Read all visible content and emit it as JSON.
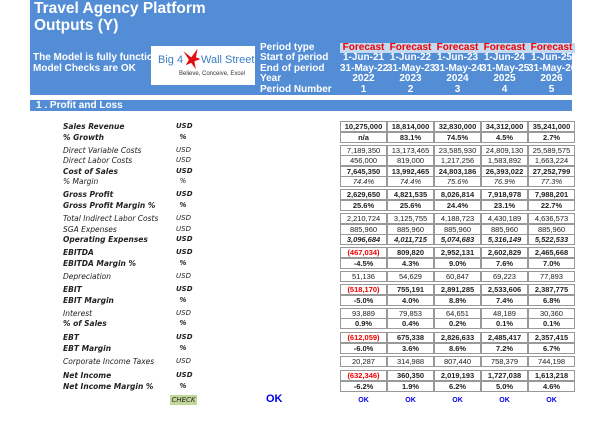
{
  "title_line1": "Travel Agency Platform",
  "title_line2": "Outputs (Y)",
  "status1": "The Model is fully functional",
  "status2": "Model Checks are OK",
  "logo": {
    "left": "Big 4",
    "right": "Wall Street",
    "tagline": "Believe, Conceive, Excel"
  },
  "period_labels": [
    "Period type",
    "Start of period",
    "End of period",
    "Year",
    "Period Number"
  ],
  "periods": [
    {
      "type": "Forecast",
      "start": "1-Jun-21",
      "end": "31-May-22",
      "year": "2022",
      "num": "1"
    },
    {
      "type": "Forecast",
      "start": "1-Jun-22",
      "end": "31-May-23",
      "year": "2023",
      "num": "2"
    },
    {
      "type": "Forecast",
      "start": "1-Jun-23",
      "end": "31-May-24",
      "year": "2024",
      "num": "3"
    },
    {
      "type": "Forecast",
      "start": "1-Jun-24",
      "end": "31-May-25",
      "year": "2025",
      "num": "4"
    },
    {
      "type": "Forecast",
      "start": "1-Jun-25",
      "end": "31-May-26",
      "year": "2026",
      "num": "5"
    }
  ],
  "section": "1 . Profit and Loss",
  "rows": [
    {
      "label": "Sales Revenue",
      "unit": "USD",
      "bold": true,
      "values": [
        "10,275,000",
        "18,814,000",
        "32,830,000",
        "34,312,000",
        "35,241,000"
      ]
    },
    {
      "label": "% Growth",
      "unit": "%",
      "bold": true,
      "values": [
        "n/a",
        "83.1%",
        "74.5%",
        "4.5%",
        "2.7%"
      ]
    },
    {
      "label": "Direct Variable Costs",
      "unit": "USD",
      "values": [
        "7,189,350",
        "13,173,465",
        "23,585,930",
        "24,809,130",
        "25,589,575"
      ]
    },
    {
      "label": "Direct Labor Costs",
      "unit": "USD",
      "values": [
        "456,000",
        "819,000",
        "1,217,256",
        "1,583,892",
        "1,663,224"
      ]
    },
    {
      "label": "Cost of Sales",
      "unit": "USD",
      "bold": true,
      "values": [
        "7,645,350",
        "13,992,465",
        "24,803,186",
        "26,393,022",
        "27,252,799"
      ]
    },
    {
      "label": "% Margin",
      "unit": "%",
      "italic": true,
      "values": [
        "74.4%",
        "74.4%",
        "75.6%",
        "76.9%",
        "77.3%"
      ]
    },
    {
      "label": "Gross Profit",
      "unit": "USD",
      "bold": true,
      "values": [
        "2,629,650",
        "4,821,535",
        "8,026,814",
        "7,918,978",
        "7,988,201"
      ]
    },
    {
      "label": "Gross Profit Margin %",
      "unit": "%",
      "bold": true,
      "values": [
        "25.6%",
        "25.6%",
        "24.4%",
        "23.1%",
        "22.7%"
      ]
    },
    {
      "label": "Total Indirect Labor Costs",
      "unit": "USD",
      "values": [
        "2,210,724",
        "3,125,755",
        "4,188,723",
        "4,430,189",
        "4,636,573"
      ]
    },
    {
      "label": "SGA Expenses",
      "unit": "USD",
      "values": [
        "885,960",
        "885,960",
        "885,960",
        "885,960",
        "885,960"
      ]
    },
    {
      "label": "Operating Expenses",
      "unit": "USD",
      "bold": true,
      "italic": true,
      "values": [
        "3,096,684",
        "4,011,715",
        "5,074,683",
        "5,316,149",
        "5,522,533"
      ]
    },
    {
      "label": "EBITDA",
      "unit": "USD",
      "bold": true,
      "values": [
        "(467,034)",
        "809,820",
        "2,952,131",
        "2,602,829",
        "2,465,668"
      ]
    },
    {
      "label": "EBITDA Margin %",
      "unit": "%",
      "bold": true,
      "values": [
        "-4.5%",
        "4.3%",
        "9.0%",
        "7.6%",
        "7.0%"
      ]
    },
    {
      "label": "Depreciation",
      "unit": "USD",
      "values": [
        "51,136",
        "54,629",
        "60,847",
        "69,223",
        "77,893"
      ]
    },
    {
      "label": "EBIT",
      "unit": "USD",
      "bold": true,
      "values": [
        "(518,170)",
        "755,191",
        "2,891,285",
        "2,533,606",
        "2,387,775"
      ]
    },
    {
      "label": "EBIT Margin",
      "unit": "%",
      "bold": true,
      "values": [
        "-5.0%",
        "4.0%",
        "8.8%",
        "7.4%",
        "6.8%"
      ]
    },
    {
      "label": "Interest",
      "unit": "USD",
      "values": [
        "93,889",
        "79,853",
        "64,651",
        "48,189",
        "30,360"
      ]
    },
    {
      "label": "% of Sales",
      "unit": "%",
      "bold": true,
      "values": [
        "0.9%",
        "0.4%",
        "0.2%",
        "0.1%",
        "0.1%"
      ]
    },
    {
      "label": "EBT",
      "unit": "USD",
      "bold": true,
      "values": [
        "(612,059)",
        "675,338",
        "2,826,633",
        "2,485,417",
        "2,357,415"
      ]
    },
    {
      "label": "EBT Margin",
      "unit": "%",
      "bold": true,
      "values": [
        "-6.0%",
        "3.6%",
        "8.6%",
        "7.2%",
        "6.7%"
      ]
    },
    {
      "label": "Corporate Income Taxes",
      "unit": "USD",
      "values": [
        "20,287",
        "314,988",
        "807,440",
        "758,379",
        "744,198"
      ]
    },
    {
      "label": "Net Income",
      "unit": "USD",
      "bold": true,
      "values": [
        "(632,346)",
        "360,350",
        "2,019,193",
        "1,727,038",
        "1,613,218"
      ]
    },
    {
      "label": "Net Income Margin %",
      "unit": "%",
      "bold": true,
      "values": [
        "-6.2%",
        "1.9%",
        "6.2%",
        "5.0%",
        "4.6%"
      ]
    }
  ],
  "check": {
    "label": "CHECK",
    "overall": "OK",
    "values": [
      "OK",
      "OK",
      "OK",
      "OK",
      "OK"
    ]
  },
  "colors": {
    "header": "#538dd5",
    "negative": "#e00000",
    "ok": "#0000ee"
  }
}
